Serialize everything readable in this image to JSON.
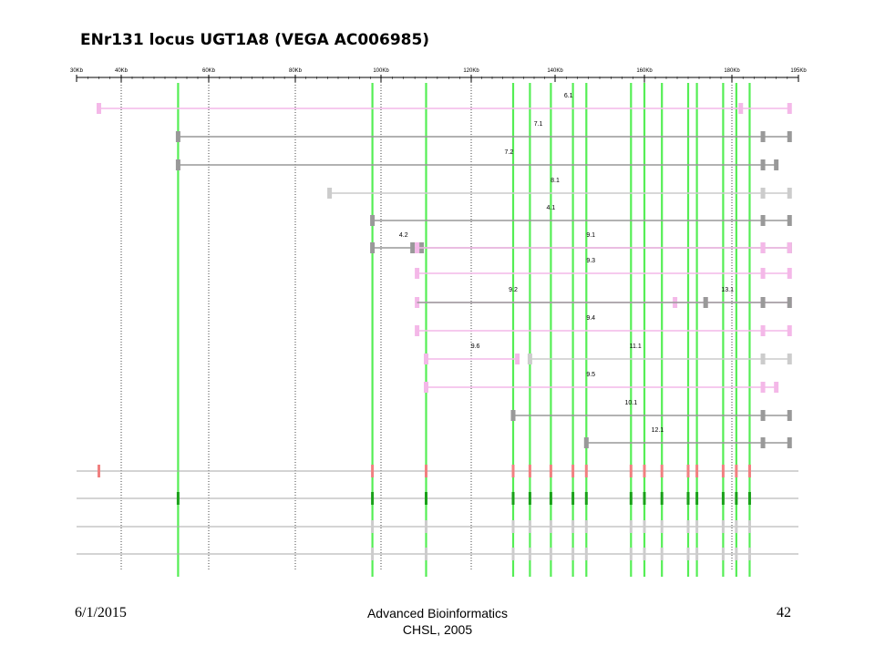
{
  "slide": {
    "title": "ENr131 locus UGT1A8 (VEGA AC006985)",
    "footer_date": "6/1/2015",
    "footer_course": "Advanced Bioinformatics",
    "footer_org": "CHSL, 2005",
    "page_number": "42"
  },
  "colors": {
    "green_line": "#55ee55",
    "pink": "#f4b8e8",
    "gray_exon": "#999999",
    "light_gray_exon": "#cccccc",
    "red_mark": "#f08080",
    "dark_green_mark": "#1aa01a"
  },
  "scale": {
    "tick_labels": [
      "30Kb",
      "40Kb",
      "60Kb",
      "80Kb",
      "100Kb",
      "120Kb",
      "140Kb",
      "160Kb",
      "180Kb",
      "195Kb"
    ],
    "tick_kb": [
      30,
      40,
      60,
      80,
      100,
      120,
      140,
      160,
      180,
      195
    ]
  },
  "transcripts": [
    {
      "label": "6.1",
      "label_kb": 143,
      "start_kb": 35,
      "end_kb": 193,
      "color": "pink",
      "exons": [
        35,
        182,
        193
      ]
    },
    {
      "label": "7.1",
      "label_kb": 136,
      "start_kb": 53,
      "end_kb": 193,
      "color": "gray",
      "exons": [
        53,
        187,
        193
      ]
    },
    {
      "label": "7.2",
      "label_kb": 129,
      "start_kb": 53,
      "end_kb": 190,
      "color": "gray",
      "exons": [
        53,
        187,
        190
      ]
    },
    {
      "label": "8.1",
      "label_kb": 140,
      "start_kb": 88,
      "end_kb": 193,
      "color": "lightgray",
      "exons": [
        88,
        187,
        193
      ]
    },
    {
      "label": "4.1",
      "label_kb": 139,
      "start_kb": 98,
      "end_kb": 193,
      "color": "gray",
      "exons": [
        98,
        187,
        193
      ]
    },
    {
      "label": "4.2",
      "label_kb": 105,
      "start_kb": 98,
      "end_kb": 193,
      "color": "gray",
      "exons": [
        98,
        107,
        109,
        187,
        193
      ]
    },
    {
      "label": "9.1",
      "label_kb": 148,
      "start_kb": 108,
      "end_kb": 193,
      "color": "pink",
      "exons": [
        108,
        187,
        193
      ]
    },
    {
      "label": "9.3",
      "label_kb": 148,
      "start_kb": 108,
      "end_kb": 193,
      "color": "pink",
      "exons": [
        108,
        187,
        193
      ]
    },
    {
      "label": "9.2",
      "label_kb": 130,
      "start_kb": 108,
      "end_kb": 193,
      "color": "pink",
      "exons": [
        108,
        167,
        174,
        187,
        193
      ]
    },
    {
      "label": "13.1",
      "label_kb": 179,
      "start_kb": 108,
      "end_kb": 193,
      "color": "gray",
      "exons": [
        174,
        187,
        193
      ]
    },
    {
      "label": "9.4",
      "label_kb": 148,
      "start_kb": 108,
      "end_kb": 193,
      "color": "pink",
      "exons": [
        108,
        187,
        193
      ]
    },
    {
      "label": "9.6",
      "label_kb": 121,
      "start_kb": 110,
      "end_kb": 131,
      "color": "pink",
      "exons": [
        110,
        131
      ]
    },
    {
      "label": "11.1",
      "label_kb": 158,
      "start_kb": 134,
      "end_kb": 193,
      "color": "lightgray",
      "exons": [
        134,
        187,
        193
      ]
    },
    {
      "label": "9.5",
      "label_kb": 148,
      "start_kb": 110,
      "end_kb": 190,
      "color": "pink",
      "exons": [
        110,
        187,
        190
      ]
    },
    {
      "label": "10.1",
      "label_kb": 157,
      "start_kb": 130,
      "end_kb": 193,
      "color": "gray",
      "exons": [
        130,
        187,
        193
      ]
    },
    {
      "label": "12.1",
      "label_kb": 163,
      "start_kb": 147,
      "end_kb": 193,
      "color": "gray",
      "exons": [
        147,
        187,
        193
      ]
    }
  ],
  "alignment_columns_kb": [
    53,
    98,
    110,
    130,
    134,
    139,
    144,
    147,
    157,
    160,
    164,
    170,
    172,
    178,
    181,
    184
  ],
  "dotted_guides_kb": [
    40,
    60,
    80,
    100,
    120,
    160,
    180
  ]
}
